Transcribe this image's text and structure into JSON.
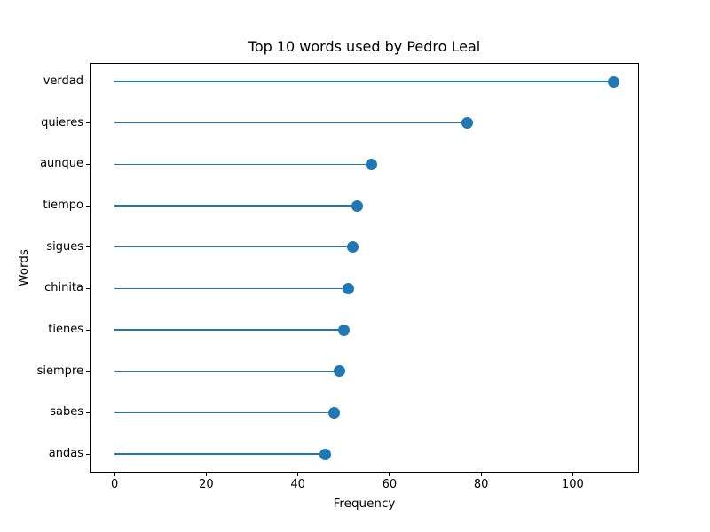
{
  "chart_data": {
    "type": "scatter",
    "variant": "lollipop-horizontal",
    "title": "Top 10 words used by Pedro Leal",
    "xlabel": "Frequency",
    "ylabel": "Words",
    "categories": [
      "verdad",
      "quieres",
      "aunque",
      "tiempo",
      "sigues",
      "chinita",
      "tienes",
      "siempre",
      "sabes",
      "andas"
    ],
    "values": [
      109,
      77,
      56,
      53,
      52,
      51,
      50,
      49,
      48,
      46
    ],
    "stem_start": 0,
    "xticks": [
      0,
      20,
      40,
      60,
      80,
      100
    ],
    "xlim": [
      -5.45,
      114.45
    ],
    "grid": false,
    "legend": "none",
    "marker_color": "#1f77b4",
    "stem_color": "#1f77b4",
    "axis_color": "#000000",
    "background_color": "#ffffff"
  }
}
